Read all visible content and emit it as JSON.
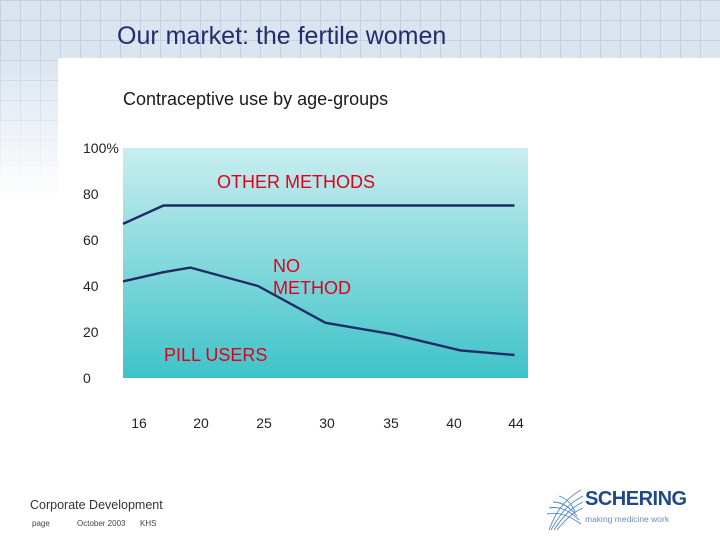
{
  "slide": {
    "title": "Our market: the fertile women"
  },
  "footer": {
    "department": "Corporate Development",
    "page_label": "page",
    "date": "October 2003",
    "initials": "KHS",
    "logo_text": "SCHERING",
    "logo_tagline": "making medicine work"
  },
  "colors": {
    "title_text": "#1f2f6b",
    "plot_top": "#c9eef0",
    "plot_bottom": "#3ec3c8",
    "line": "#1f2a66",
    "grid_background": "#dbe5f0"
  },
  "chart_data": {
    "type": "area",
    "title": "Contraceptive use by age-groups",
    "x": [
      16,
      20,
      25,
      30,
      35,
      40,
      44
    ],
    "x_ticks": [
      "16",
      "20",
      "25",
      "30",
      "35",
      "40",
      "44"
    ],
    "y_ticks": [
      "0",
      "20",
      "40",
      "60",
      "80",
      "100%"
    ],
    "ylim": [
      0,
      100
    ],
    "xlim": [
      15,
      45
    ],
    "grid": false,
    "series": [
      {
        "name": "PILL USERS",
        "x": [
          15,
          18,
          20,
          25,
          30,
          35,
          40,
          44
        ],
        "values": [
          42,
          46,
          48,
          40,
          24,
          19,
          12,
          10
        ]
      },
      {
        "name": "NO METHOD",
        "x": [
          15,
          18,
          44
        ],
        "values": [
          67,
          75,
          75
        ]
      },
      {
        "name": "OTHER METHODS",
        "x": [
          15,
          44
        ],
        "values": [
          100,
          100
        ]
      }
    ],
    "region_labels": [
      "OTHER METHODS",
      "NO METHOD",
      "PILL USERS"
    ]
  }
}
